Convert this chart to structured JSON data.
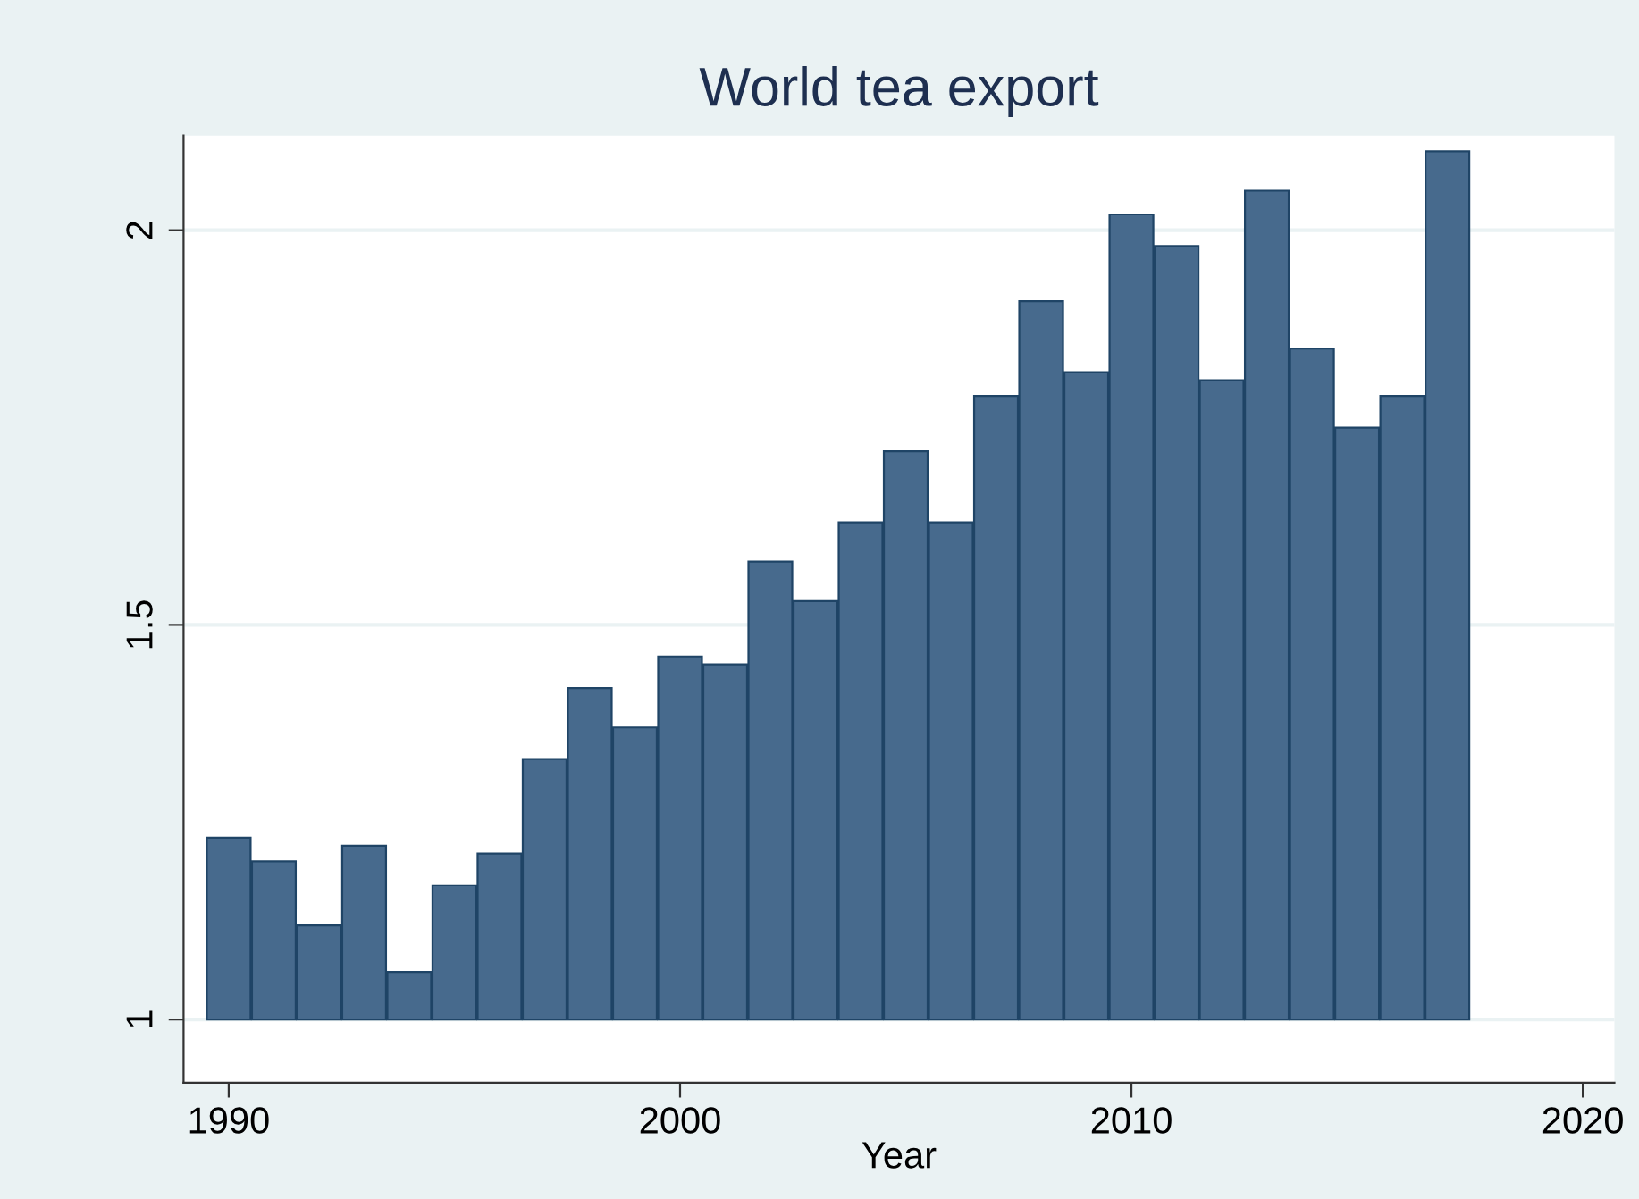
{
  "chart_data": {
    "type": "bar",
    "title": "World tea export",
    "xlabel": "Year",
    "x": [
      1990,
      1991,
      1992,
      1993,
      1994,
      1995,
      1996,
      1997,
      1998,
      1999,
      2000,
      2001,
      2002,
      2003,
      2004,
      2005,
      2006,
      2007,
      2008,
      2009,
      2010,
      2011,
      2012,
      2013,
      2014,
      2015,
      2016,
      2017
    ],
    "base": [
      1,
      1,
      1,
      1,
      1,
      1,
      1,
      1,
      1,
      1,
      1,
      1,
      1,
      1,
      1,
      1,
      1,
      1,
      1,
      1,
      1,
      1,
      1,
      1,
      1,
      1,
      1,
      1
    ],
    "values": [
      0.23,
      0.2,
      0.12,
      0.22,
      0.06,
      0.17,
      0.21,
      0.33,
      0.42,
      0.37,
      0.46,
      0.45,
      0.58,
      0.53,
      0.63,
      0.72,
      0.63,
      0.79,
      0.91,
      0.82,
      1.02,
      0.98,
      0.81,
      1.05,
      0.85,
      0.75,
      0.79,
      1.1
    ],
    "color": "#476a8d",
    "xlim": [
      1989,
      2020.7
    ],
    "xticks": [
      1990,
      2000,
      2010,
      2020
    ],
    "ylim": [
      0.92,
      2.12
    ],
    "yticks": [
      1,
      1.5,
      2
    ],
    "grid": "y",
    "legend": false
  }
}
